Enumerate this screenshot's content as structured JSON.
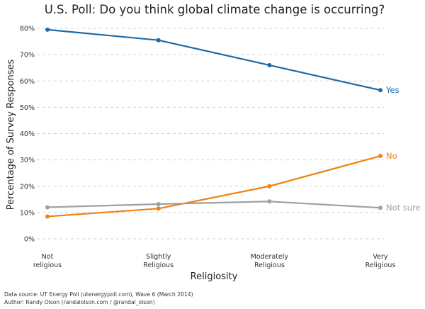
{
  "chart_data": {
    "type": "line",
    "title": "U.S. Poll: Do you think global climate change is occurring?",
    "xlabel": "Religiosity",
    "ylabel": "Percentage of Survey Responses",
    "categories": [
      [
        "Not",
        "religious"
      ],
      [
        "Slightly",
        "Religious"
      ],
      [
        "Moderately",
        "Religious"
      ],
      [
        "Very",
        "Religious"
      ]
    ],
    "ylim": [
      0,
      80
    ],
    "yticks": [
      "0%",
      "10%",
      "20%",
      "30%",
      "40%",
      "50%",
      "60%",
      "70%",
      "80%"
    ],
    "ytick_values": [
      0,
      10,
      20,
      30,
      40,
      50,
      60,
      70,
      80
    ],
    "grid": true,
    "series": [
      {
        "name": "Yes",
        "color": "#1f6aa5",
        "values": [
          79.5,
          75.5,
          66,
          56.5
        ]
      },
      {
        "name": "No",
        "color": "#f0820f",
        "values": [
          8.5,
          11.5,
          20,
          31.5
        ]
      },
      {
        "name": "Not sure",
        "color": "#a0a0a0",
        "values": [
          12,
          13.2,
          14.2,
          11.8
        ]
      }
    ],
    "footer": [
      "Data source: UT Energy Poll (utenergypoll.com), Wave 6 (March 2014)",
      "Author: Randy Olson (randalolson.com / @randal_olson)"
    ]
  }
}
